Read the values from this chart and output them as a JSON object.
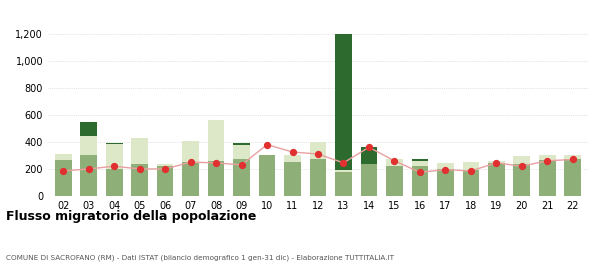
{
  "years": [
    "02",
    "03",
    "04",
    "05",
    "06",
    "07",
    "08",
    "09",
    "10",
    "11",
    "12",
    "13",
    "14",
    "15",
    "16",
    "17",
    "18",
    "19",
    "20",
    "21",
    "22"
  ],
  "iscritti_altri_comuni": [
    265,
    300,
    200,
    240,
    220,
    250,
    260,
    270,
    300,
    250,
    270,
    180,
    240,
    225,
    220,
    200,
    195,
    245,
    240,
    265,
    275
  ],
  "iscritti_estero": [
    45,
    145,
    185,
    190,
    15,
    160,
    300,
    110,
    0,
    55,
    130,
    10,
    0,
    50,
    35,
    45,
    55,
    15,
    55,
    35,
    25
  ],
  "iscritti_altri": [
    0,
    105,
    10,
    0,
    0,
    0,
    0,
    10,
    0,
    0,
    0,
    1120,
    120,
    0,
    20,
    0,
    0,
    0,
    0,
    0,
    0
  ],
  "cancellati": [
    185,
    200,
    220,
    200,
    200,
    250,
    245,
    230,
    380,
    325,
    310,
    245,
    360,
    260,
    175,
    195,
    185,
    245,
    220,
    260,
    270
  ],
  "color_altri_comuni": "#8faf78",
  "color_estero": "#dde8c8",
  "color_altri": "#2d6a2d",
  "color_cancellati": "#e03030",
  "color_line": "#e8a0a0",
  "title": "Flusso migratorio della popolazione",
  "subtitle": "COMUNE DI SACROFANO (RM) - Dati ISTAT (bilancio demografico 1 gen-31 dic) - Elaborazione TUTTITALIA.IT",
  "ylim": [
    0,
    1200
  ],
  "yticks": [
    0,
    200,
    400,
    600,
    800,
    1000,
    1200
  ],
  "background_color": "#ffffff",
  "grid_color": "#cccccc"
}
